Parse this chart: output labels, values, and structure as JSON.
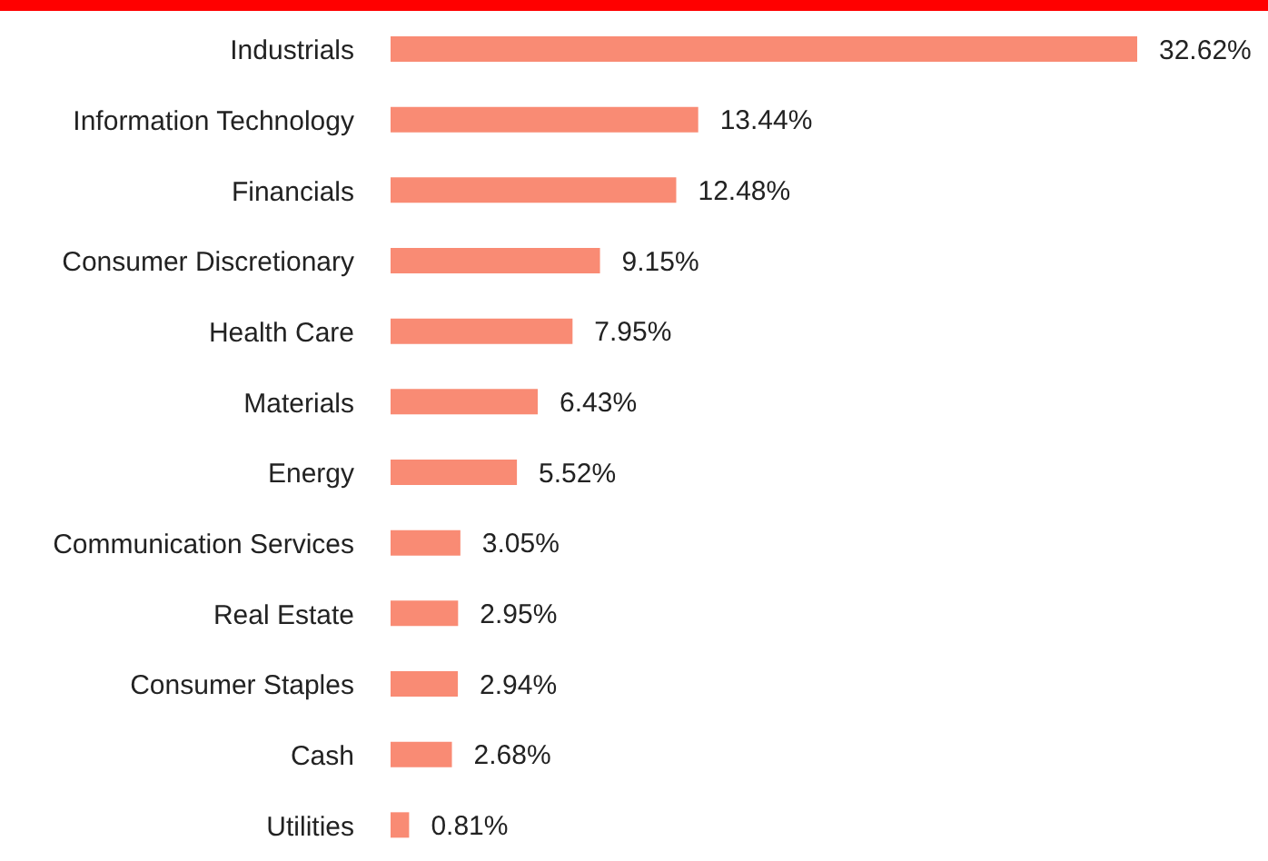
{
  "chart_data": {
    "type": "bar",
    "orientation": "horizontal",
    "categories": [
      "Industrials",
      "Information Technology",
      "Financials",
      "Consumer Discretionary",
      "Health Care",
      "Materials",
      "Energy",
      "Communication Services",
      "Real Estate",
      "Consumer Staples",
      "Cash",
      "Utilities"
    ],
    "values": [
      32.62,
      13.44,
      12.48,
      9.15,
      7.95,
      6.43,
      5.52,
      3.05,
      2.95,
      2.94,
      2.68,
      0.81
    ],
    "value_labels": [
      "32.62%",
      "13.44%",
      "12.48%",
      "9.15%",
      "7.95%",
      "6.43%",
      "5.52%",
      "3.05%",
      "2.95%",
      "2.94%",
      "2.68%",
      "0.81%"
    ],
    "color": "#f98b74"
  }
}
